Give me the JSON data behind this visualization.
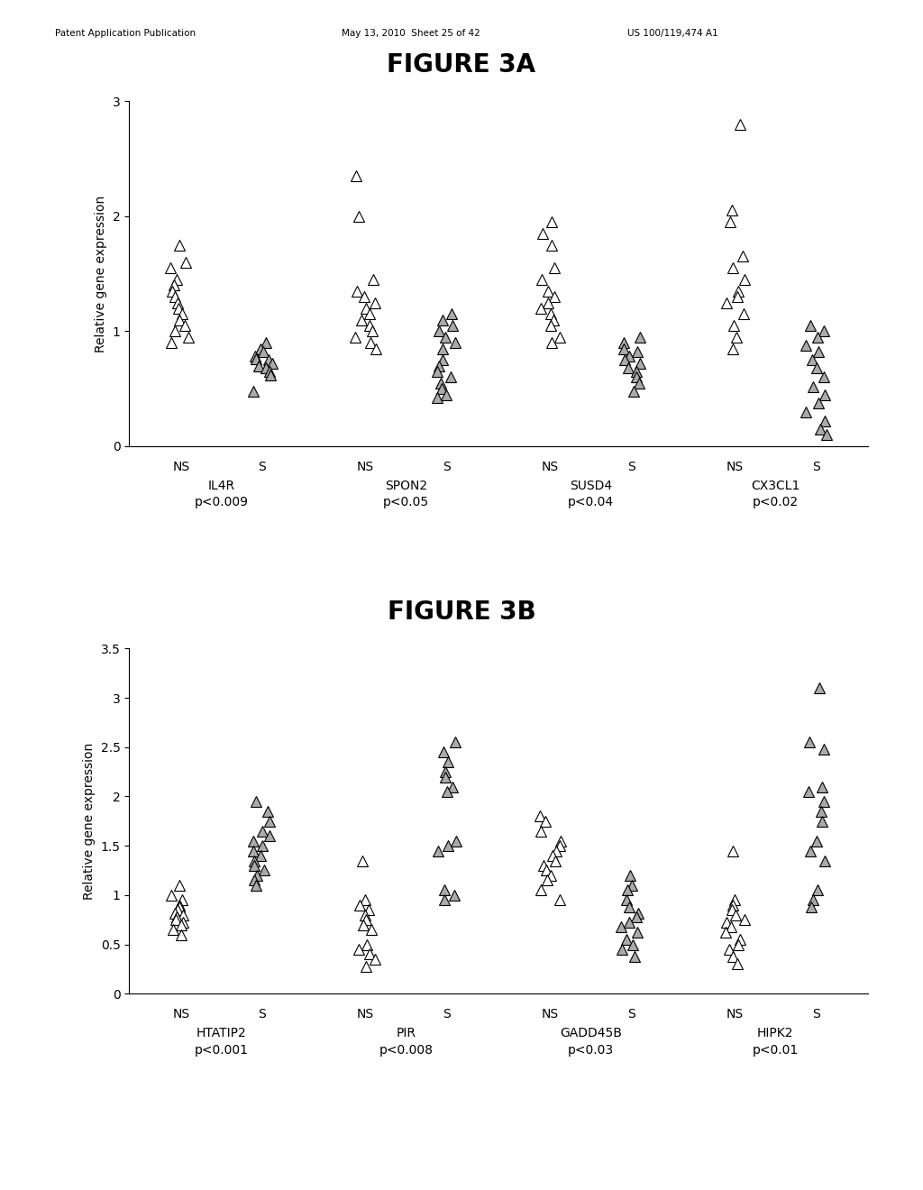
{
  "fig3a_title": "FIGURE 3A",
  "fig3b_title": "FIGURE 3B",
  "ylabel": "Relative gene expression",
  "header_left": "Patent Application Publication",
  "header_mid": "May 13, 2010  Sheet 25 of 42",
  "header_right": "US 100/119,474 A1",
  "fig3a": {
    "ylim": [
      0,
      3
    ],
    "yticks": [
      0,
      1,
      2,
      3
    ],
    "groups": [
      {
        "name": "IL4R",
        "pval": "p<0.009",
        "NS": [
          1.75,
          1.6,
          1.55,
          1.45,
          1.4,
          1.35,
          1.3,
          1.25,
          1.2,
          1.15,
          1.1,
          1.05,
          1.0,
          0.95,
          0.9
        ],
        "S": [
          0.9,
          0.85,
          0.82,
          0.78,
          0.76,
          0.75,
          0.72,
          0.7,
          0.68,
          0.65,
          0.62,
          0.48
        ]
      },
      {
        "name": "SPON2",
        "pval": "p<0.05",
        "NS": [
          2.35,
          2.0,
          1.45,
          1.35,
          1.3,
          1.25,
          1.2,
          1.15,
          1.1,
          1.05,
          1.0,
          0.95,
          0.9,
          0.85
        ],
        "S": [
          1.15,
          1.1,
          1.05,
          1.0,
          0.95,
          0.9,
          0.85,
          0.75,
          0.7,
          0.65,
          0.6,
          0.55,
          0.5,
          0.45,
          0.42
        ]
      },
      {
        "name": "SUSD4",
        "pval": "p<0.04",
        "NS": [
          1.95,
          1.85,
          1.75,
          1.55,
          1.45,
          1.35,
          1.3,
          1.25,
          1.2,
          1.15,
          1.1,
          1.05,
          0.95,
          0.9
        ],
        "S": [
          0.95,
          0.9,
          0.85,
          0.82,
          0.78,
          0.75,
          0.72,
          0.68,
          0.65,
          0.6,
          0.55,
          0.48
        ]
      },
      {
        "name": "CX3CL1",
        "pval": "p<0.02",
        "NS": [
          2.8,
          2.05,
          1.95,
          1.65,
          1.55,
          1.45,
          1.35,
          1.3,
          1.25,
          1.15,
          1.05,
          0.95,
          0.85
        ],
        "S": [
          1.05,
          1.0,
          0.95,
          0.88,
          0.82,
          0.75,
          0.68,
          0.6,
          0.52,
          0.45,
          0.38,
          0.3,
          0.22,
          0.15,
          0.1
        ]
      }
    ]
  },
  "fig3b": {
    "ylim": [
      0,
      3.5
    ],
    "yticks": [
      0,
      0.5,
      1.0,
      1.5,
      2.0,
      2.5,
      3.0,
      3.5
    ],
    "groups": [
      {
        "name": "HTATIP2",
        "pval": "p<0.001",
        "NS": [
          1.1,
          1.0,
          0.95,
          0.9,
          0.88,
          0.85,
          0.82,
          0.8,
          0.78,
          0.75,
          0.72,
          0.7,
          0.65,
          0.6
        ],
        "S": [
          1.95,
          1.85,
          1.75,
          1.65,
          1.6,
          1.55,
          1.5,
          1.45,
          1.4,
          1.35,
          1.3,
          1.25,
          1.2,
          1.15,
          1.1
        ]
      },
      {
        "name": "PIR",
        "pval": "p<0.008",
        "NS": [
          1.35,
          0.95,
          0.9,
          0.85,
          0.8,
          0.75,
          0.7,
          0.65,
          0.5,
          0.45,
          0.4,
          0.35,
          0.28
        ],
        "S": [
          2.55,
          2.45,
          2.35,
          2.25,
          2.2,
          2.1,
          2.05,
          1.55,
          1.5,
          1.45,
          1.05,
          1.0,
          0.95
        ]
      },
      {
        "name": "GADD45B",
        "pval": "p<0.03",
        "NS": [
          1.8,
          1.75,
          1.65,
          1.55,
          1.5,
          1.45,
          1.4,
          1.35,
          1.3,
          1.25,
          1.2,
          1.15,
          1.05,
          0.95
        ],
        "S": [
          1.2,
          1.1,
          1.05,
          0.95,
          0.88,
          0.82,
          0.78,
          0.72,
          0.68,
          0.62,
          0.55,
          0.5,
          0.45,
          0.38
        ]
      },
      {
        "name": "HIPK2",
        "pval": "p<0.01",
        "NS": [
          1.45,
          0.95,
          0.9,
          0.85,
          0.8,
          0.75,
          0.72,
          0.68,
          0.62,
          0.55,
          0.5,
          0.45,
          0.38,
          0.3
        ],
        "S": [
          3.1,
          2.55,
          2.48,
          2.1,
          2.05,
          1.95,
          1.85,
          1.75,
          1.55,
          1.45,
          1.35,
          1.05,
          0.95,
          0.88
        ]
      }
    ]
  }
}
